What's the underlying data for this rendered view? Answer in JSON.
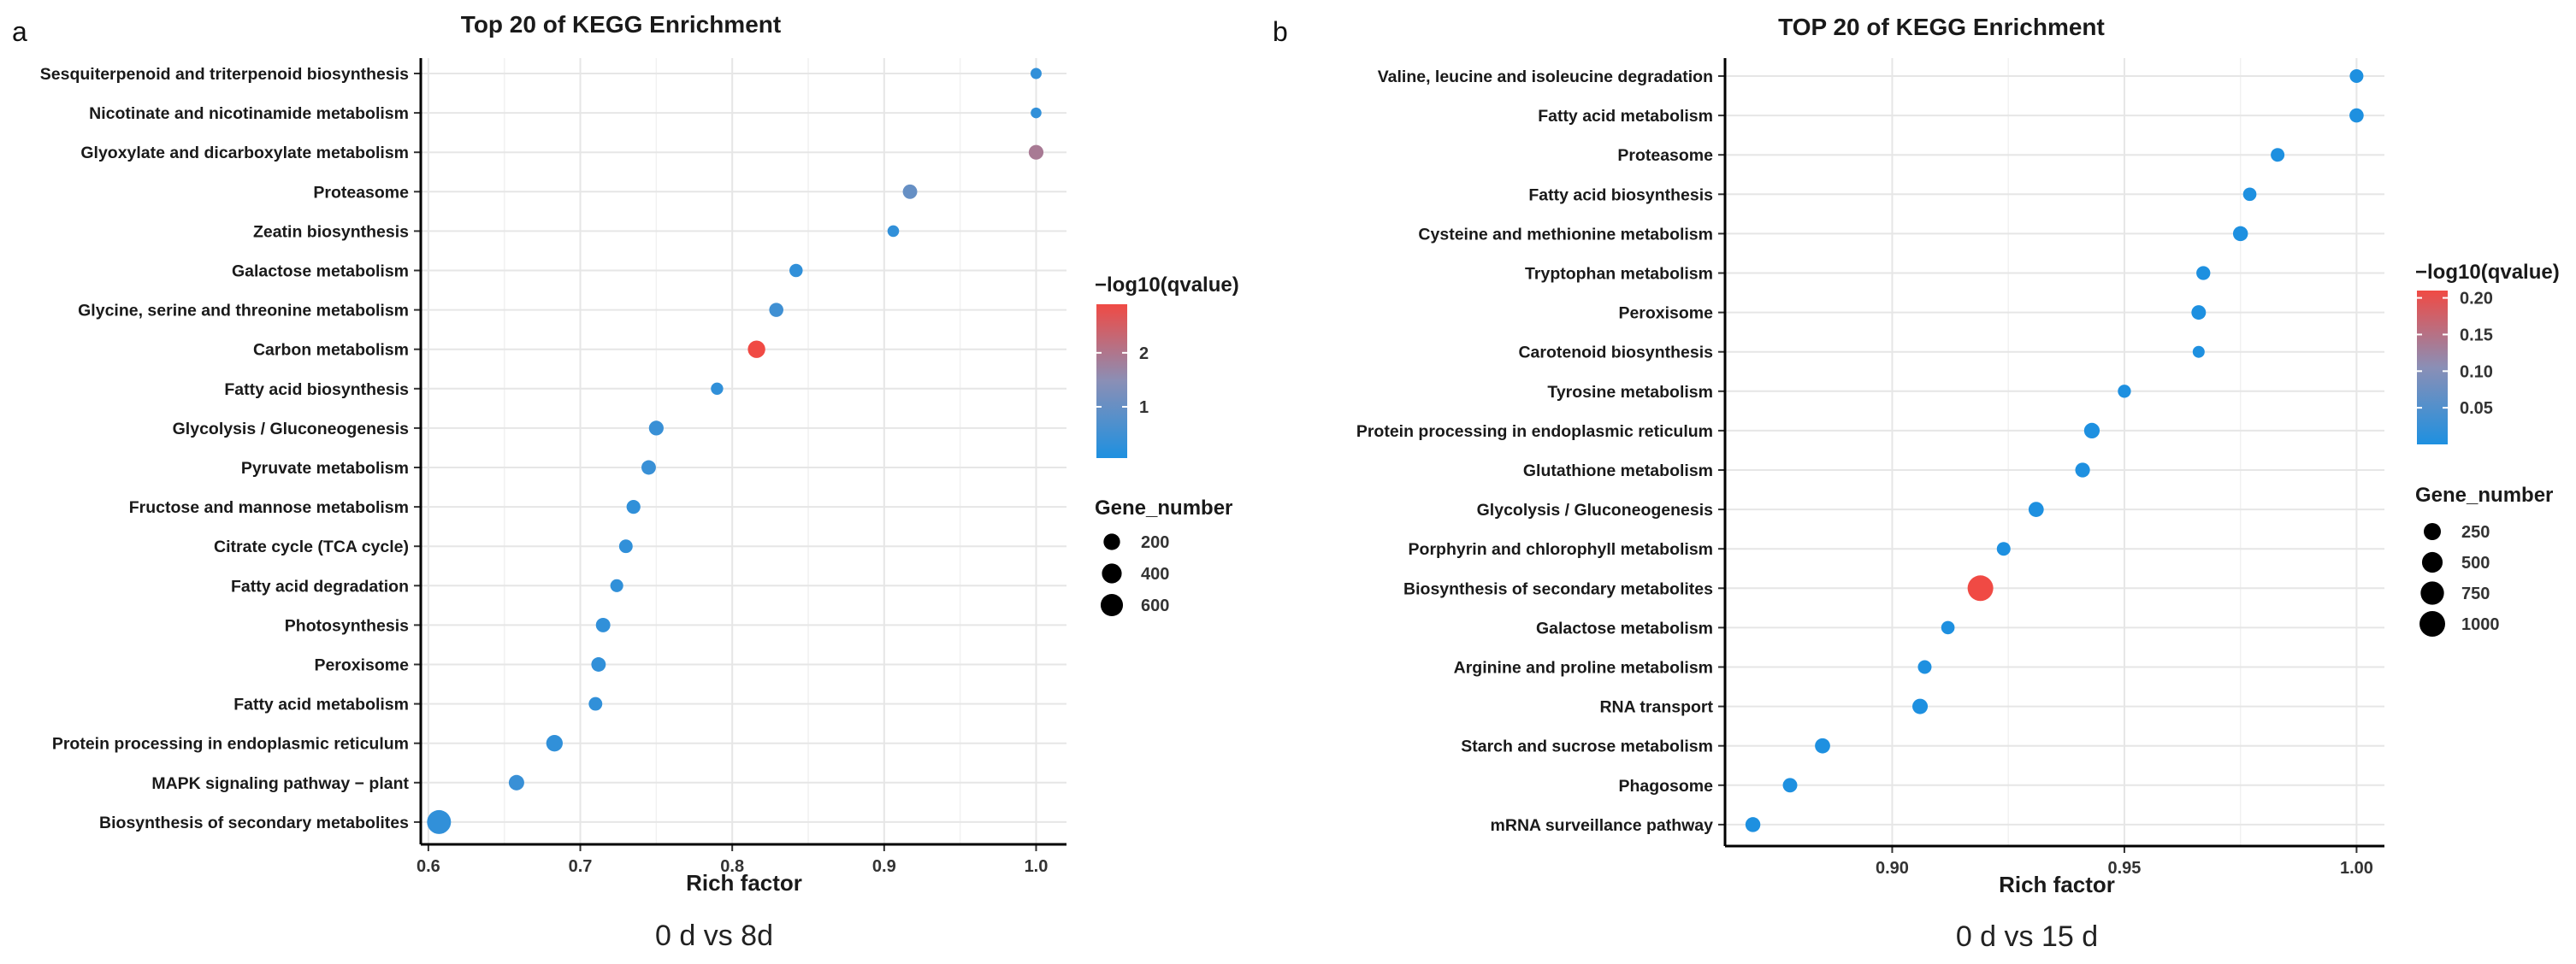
{
  "panels": {
    "a": {
      "label": "a",
      "caption": "0 d vs 8d"
    },
    "b": {
      "label": "b",
      "caption": "0 d vs 15 d"
    }
  },
  "colors": {
    "low": "#1e90e0",
    "mid": "#8a8fb6",
    "high": "#f04a44",
    "grid": "#e6e6e6",
    "text": "#1a1a1a"
  },
  "chart_data": [
    {
      "type": "scatter",
      "title": "Top 20 of KEGG Enrichment",
      "xlabel": "Rich factor",
      "ylabel": "",
      "xlim": [
        0.595,
        1.02
      ],
      "xticks": [
        0.6,
        0.7,
        0.8,
        0.9,
        1.0
      ],
      "xtick_labels": [
        "0.6",
        "0.7",
        "0.8",
        "0.9",
        "1.0"
      ],
      "color_legend": {
        "title": "−log10(qvalue)",
        "range": [
          0.05,
          2.9
        ],
        "ticks": [
          1,
          2
        ],
        "tick_labels": [
          "1",
          "2"
        ]
      },
      "size_legend": {
        "title": "Gene_number",
        "values": [
          200,
          400,
          600
        ],
        "labels": [
          "200",
          "400",
          "600"
        ]
      },
      "terms": [
        "Sesquiterpenoid and triterpenoid biosynthesis",
        "Nicotinate and nicotinamide metabolism",
        "Glyoxylate and dicarboxylate metabolism",
        "Proteasome",
        "Zeatin biosynthesis",
        "Galactose metabolism",
        "Glycine, serine and threonine metabolism",
        "Carbon metabolism",
        "Fatty acid biosynthesis",
        "Glycolysis / Gluconeogenesis",
        "Pyruvate metabolism",
        "Fructose and mannose metabolism",
        "Citrate cycle (TCA cycle)",
        "Fatty acid degradation",
        "Photosynthesis",
        "Peroxisome",
        "Fatty acid metabolism",
        "Protein processing in endoplasmic reticulum",
        "MAPK signaling pathway − plant",
        "Biosynthesis of secondary metabolites"
      ],
      "rich_factor": [
        1.0,
        1.0,
        1.0,
        0.917,
        0.906,
        0.842,
        0.829,
        0.816,
        0.79,
        0.75,
        0.745,
        0.735,
        0.73,
        0.724,
        0.715,
        0.712,
        0.71,
        0.683,
        0.658,
        0.607
      ],
      "qvalue_log": [
        0.3,
        0.3,
        1.9,
        1.0,
        0.3,
        0.3,
        0.5,
        2.9,
        0.3,
        0.4,
        0.4,
        0.3,
        0.3,
        0.3,
        0.3,
        0.3,
        0.3,
        0.3,
        0.4,
        0.3
      ],
      "gene_number": [
        20,
        15,
        120,
        110,
        30,
        70,
        100,
        250,
        45,
        120,
        110,
        90,
        80,
        60,
        110,
        110,
        80,
        200,
        150,
        750
      ]
    },
    {
      "type": "scatter",
      "title": "TOP 20 of KEGG  Enrichment",
      "xlabel": "Rich factor",
      "ylabel": "",
      "xlim": [
        0.864,
        1.006
      ],
      "xticks": [
        0.9,
        0.95,
        1.0
      ],
      "xtick_labels": [
        "0.90",
        "0.95",
        "1.00"
      ],
      "color_legend": {
        "title": "−log10(qvalue)",
        "range": [
          0.0,
          0.21
        ],
        "ticks": [
          0.05,
          0.1,
          0.15,
          0.2
        ],
        "tick_labels": [
          "0.05",
          "0.10",
          "0.15",
          "0.20"
        ]
      },
      "size_legend": {
        "title": "Gene_number",
        "values": [
          250,
          500,
          750,
          1000
        ],
        "labels": [
          "250",
          "500",
          "750",
          "1000"
        ]
      },
      "terms": [
        "Valine, leucine and isoleucine degradation",
        "Fatty acid metabolism",
        "Proteasome",
        "Fatty acid biosynthesis",
        "Cysteine and methionine metabolism",
        "Tryptophan metabolism",
        "Peroxisome",
        "Carotenoid biosynthesis",
        "Tyrosine metabolism",
        "Protein processing in endoplasmic reticulum",
        "Glutathione metabolism",
        "Glycolysis / Gluconeogenesis",
        "Porphyrin and chlorophyll metabolism",
        "Biosynthesis of secondary metabolites",
        "Galactose metabolism",
        "Arginine and proline metabolism",
        "RNA transport",
        "Starch and sucrose metabolism",
        "Phagosome",
        "mRNA surveillance pathway"
      ],
      "rich_factor": [
        1.0,
        1.0,
        0.983,
        0.977,
        0.975,
        0.967,
        0.966,
        0.966,
        0.95,
        0.943,
        0.941,
        0.931,
        0.924,
        0.919,
        0.912,
        0.907,
        0.906,
        0.885,
        0.878,
        0.87
      ],
      "qvalue_log": [
        0.0,
        0.0,
        0.0,
        0.0,
        0.0,
        0.0,
        0.0,
        0.0,
        0.0,
        0.0,
        0.0,
        0.0,
        0.0,
        0.21,
        0.0,
        0.0,
        0.0,
        0.0,
        0.0,
        0.0
      ],
      "gene_number": [
        90,
        110,
        90,
        80,
        140,
        100,
        120,
        40,
        70,
        170,
        130,
        150,
        90,
        1000,
        80,
        90,
        160,
        150,
        120,
        140
      ]
    }
  ]
}
